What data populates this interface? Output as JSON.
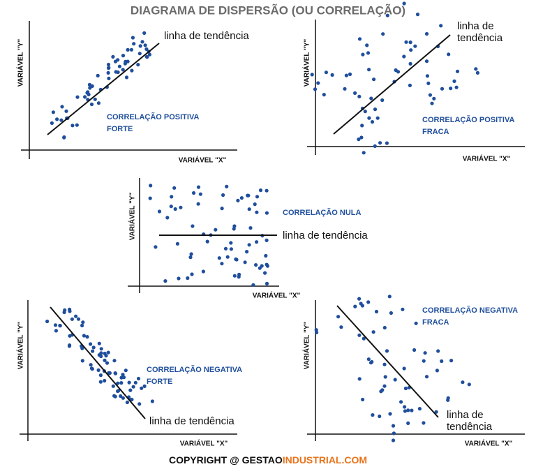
{
  "header": {
    "title": "DIAGRAMA DE DISPERSÃO (OU CORRELAÇÃO)"
  },
  "panels": [
    {
      "label": [
        "CORRELAÇÃO POSITIVA",
        "FORTE"
      ],
      "trend_label": [
        "linha de tendência"
      ],
      "y_axis_label": "VARIÁVEL \"Y\"",
      "x_axis_label": "VARIÁVEL \"X\""
    },
    {
      "label": [
        "CORRELAÇÃO POSITIVA",
        "FRACA"
      ],
      "trend_label": [
        "linha de",
        "tendência"
      ],
      "y_axis_label": "VARIÁVEL \"Y\"",
      "x_axis_label": "VARIÁVEL \"X\""
    },
    {
      "label": [
        "CORRELAÇÃO NULA"
      ],
      "trend_label": [
        "linha de tendência"
      ],
      "y_axis_label": "VARIÁVEL \"Y\"",
      "x_axis_label": "VARIÁVEL \"X\""
    },
    {
      "label": [
        "CORRELAÇÃO NEGATIVA",
        "FORTE"
      ],
      "trend_label": [
        "linha de tendência"
      ],
      "y_axis_label": "VARIÁVEL \"Y\"",
      "x_axis_label": "VARIÁVEL \"X\""
    },
    {
      "label": [
        "CORRELAÇÃO NEGATIVA",
        "FRACA"
      ],
      "trend_label": [
        "linha de",
        "tendência"
      ],
      "y_axis_label": "VARIÁVEL \"Y\"",
      "x_axis_label": "VARIÁVEL \"X\""
    }
  ],
  "footer": {
    "prefix": "COPYRIGHT @ ",
    "brand": "GESTAO",
    "brand_highlight": "INDUSTRIAL.COM"
  }
}
